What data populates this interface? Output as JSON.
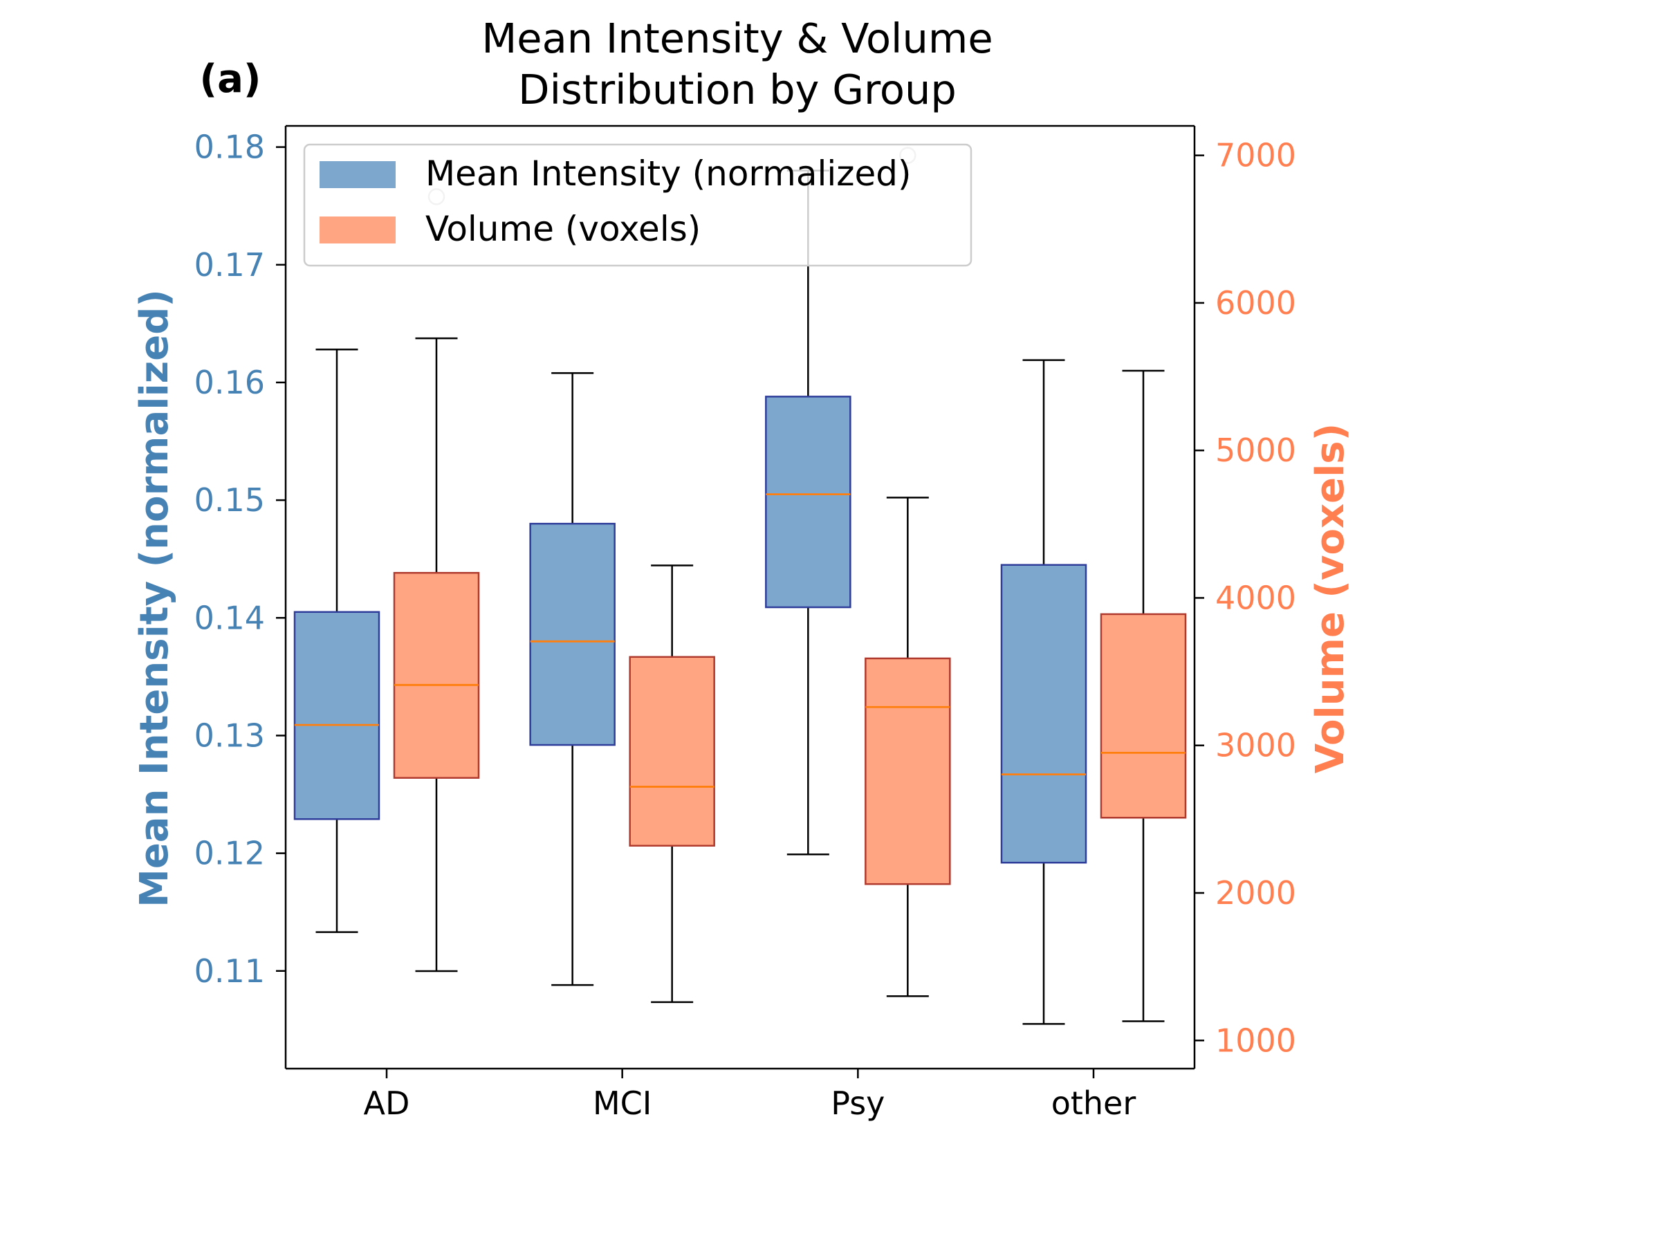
{
  "chart_data": {
    "type": "box",
    "panel_label": "(a)",
    "title": "Mean Intensity & Volume\nDistribution by Group",
    "categories": [
      "AD",
      "MCI",
      "Psy",
      "other"
    ],
    "y_left": {
      "label": "Mean Intensity (normalized)",
      "range": [
        0.1017,
        0.1818
      ],
      "ticks": [
        0.11,
        0.12,
        0.13,
        0.14,
        0.15,
        0.16,
        0.17,
        0.18
      ],
      "tick_labels": [
        "0.11",
        "0.12",
        "0.13",
        "0.14",
        "0.15",
        "0.16",
        "0.17",
        "0.18"
      ],
      "color": "#4682b4"
    },
    "y_right": {
      "label": "Volume (voxels)",
      "range": [
        809,
        7200
      ],
      "ticks": [
        1000,
        2000,
        3000,
        4000,
        5000,
        6000,
        7000
      ],
      "tick_labels": [
        "1000",
        "2000",
        "3000",
        "4000",
        "5000",
        "6000",
        "7000"
      ],
      "color": "#ff7f50"
    },
    "series": [
      {
        "name": "Mean Intensity (normalized)",
        "axis": "left",
        "fill": "#7ea7cd",
        "edge": "#2e3d99",
        "median_color": "#ff7f0e",
        "boxes": [
          {
            "category": "AD",
            "whislo": 0.1133,
            "q1": 0.1229,
            "median": 0.1309,
            "q3": 0.1405,
            "whishi": 0.1628,
            "fliers": []
          },
          {
            "category": "MCI",
            "whislo": 0.1088,
            "q1": 0.1292,
            "median": 0.138,
            "q3": 0.148,
            "whishi": 0.1608,
            "fliers": []
          },
          {
            "category": "Psy",
            "whislo": 0.1199,
            "q1": 0.1409,
            "median": 0.1505,
            "q3": 0.1588,
            "whishi": 0.178,
            "fliers": []
          },
          {
            "category": "other",
            "whislo": 0.1055,
            "q1": 0.1192,
            "median": 0.1267,
            "q3": 0.1445,
            "whishi": 0.1619,
            "fliers": []
          }
        ]
      },
      {
        "name": "Volume (voxels)",
        "axis": "right",
        "fill": "#ffa582",
        "edge": "#b03a2e",
        "median_color": "#ff7f0e",
        "boxes": [
          {
            "category": "AD",
            "whislo": 1470,
            "q1": 2780,
            "median": 3410,
            "q3": 4170,
            "whishi": 5760,
            "fliers": [
              6720
            ]
          },
          {
            "category": "MCI",
            "whislo": 1260,
            "q1": 2320,
            "median": 2720,
            "q3": 3600,
            "whishi": 4220,
            "fliers": []
          },
          {
            "category": "Psy",
            "whislo": 1300,
            "q1": 2060,
            "median": 3260,
            "q3": 3590,
            "whishi": 4680,
            "fliers": [
              7000
            ]
          },
          {
            "category": "other",
            "whislo": 1130,
            "q1": 2510,
            "median": 2950,
            "q3": 3890,
            "whishi": 5540,
            "fliers": []
          }
        ]
      }
    ],
    "legend": {
      "position": "upper-left",
      "entries": [
        "Mean Intensity (normalized)",
        "Volume (voxels)"
      ]
    },
    "grid": false
  }
}
